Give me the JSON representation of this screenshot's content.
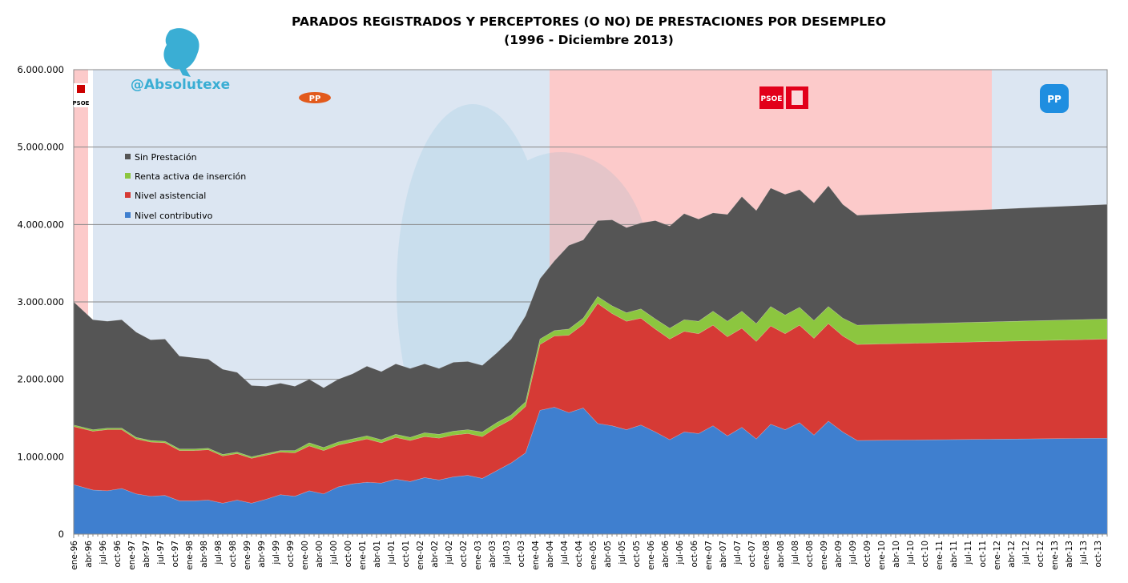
{
  "header": {
    "title_line1": "PARADOS REGISTRADOS Y PERCEPTORES (O NO) DE PRESTACIONES POR DESEMPLEO",
    "title_line2": "(1996 - Diciembre 2013)",
    "watermark_handle": "@Absolutexe"
  },
  "colors": {
    "sin_prestacion": "#555555",
    "renta_activa": "#8cc63f",
    "nivel_asistencial": "#d63a35",
    "nivel_contributivo": "#3f7fcf",
    "psoe_period_bg": "#fccaca",
    "pp_period_bg": "#dce6f2",
    "gridline": "#888888"
  },
  "logos": [
    {
      "party": "PSOE",
      "text": "PSOE"
    },
    {
      "party": "PP",
      "text": "PP"
    },
    {
      "party": "PSOE",
      "text": "PSOE"
    },
    {
      "party": "PP",
      "text": "PP"
    }
  ],
  "chart_data": {
    "type": "area",
    "stacked": true,
    "ylim": [
      0,
      6000000
    ],
    "yticks": [
      0,
      1000000,
      2000000,
      3000000,
      4000000,
      5000000,
      6000000
    ],
    "ytick_labels": [
      "0",
      "1.000.000",
      "2.000.000",
      "3.000.000",
      "4.000.000",
      "5.000.000",
      "6.000.000"
    ],
    "legend_position": "top-left",
    "legend": [
      "Sin Prestación",
      "Renta activa de inserción",
      "Nivel asistencial",
      "Nivel contributivo"
    ],
    "periods": [
      {
        "party": "PSOE",
        "from": "ene-96",
        "to": "abr-96"
      },
      {
        "party": "PP",
        "from": "may-96",
        "to": "abr-04"
      },
      {
        "party": "PSOE",
        "from": "abr-04",
        "to": "dic-11"
      },
      {
        "party": "PP",
        "from": "dic-11",
        "to": "dic-13"
      }
    ],
    "x_labels": [
      "ene-96",
      "abr-96",
      "jul-96",
      "oct-96",
      "ene-97",
      "abr-97",
      "jul-97",
      "oct-97",
      "ene-98",
      "abr-98",
      "jul-98",
      "oct-98",
      "ene-99",
      "abr-99",
      "jul-99",
      "oct-99",
      "ene-00",
      "abr-00",
      "jul-00",
      "oct-00",
      "ene-01",
      "abr-01",
      "jul-01",
      "oct-01",
      "ene-02",
      "abr-02",
      "jul-02",
      "oct-02",
      "ene-03",
      "abr-03",
      "jul-03",
      "oct-03",
      "ene-04",
      "abr-04",
      "jul-04",
      "oct-04",
      "ene-05",
      "abr-05",
      "jul-05",
      "oct-05",
      "ene-06",
      "abr-06",
      "jul-06",
      "oct-06",
      "ene-07",
      "abr-07",
      "jul-07",
      "oct-07",
      "ene-08",
      "abr-08",
      "jul-08",
      "oct-08",
      "ene-09",
      "abr-09",
      "jul-09",
      "oct-09",
      "ene-10",
      "abr-10",
      "jul-10",
      "oct-10",
      "ene-11",
      "abr-11",
      "jul-11",
      "oct-11",
      "ene-12",
      "abr-12",
      "jul-12",
      "oct-12",
      "ene-13",
      "abr-13",
      "jul-13",
      "oct-13"
    ],
    "series": [
      {
        "name": "Nivel contributivo",
        "values": [
          640000,
          570000,
          560000,
          590000,
          520000,
          490000,
          500000,
          430000,
          430000,
          440000,
          400000,
          440000,
          400000,
          450000,
          510000,
          490000,
          560000,
          520000,
          610000,
          650000,
          670000,
          660000,
          710000,
          680000,
          730000,
          700000,
          740000,
          760000,
          720000,
          820000,
          920000,
          1050000,
          1600000,
          1640000,
          1570000,
          1630000,
          1430000,
          1400000,
          1350000,
          1410000,
          1320000,
          1220000,
          1320000,
          1300000,
          1400000,
          1270000,
          1380000,
          1230000,
          1420000,
          1350000,
          1440000,
          1280000,
          1460000,
          1320000,
          1210000,
          1240000
        ]
      },
      {
        "name": "Nivel asistencial",
        "values": [
          750000,
          760000,
          790000,
          760000,
          710000,
          700000,
          680000,
          650000,
          650000,
          650000,
          610000,
          600000,
          580000,
          570000,
          550000,
          560000,
          580000,
          560000,
          540000,
          540000,
          560000,
          520000,
          540000,
          530000,
          530000,
          540000,
          540000,
          540000,
          540000,
          560000,
          560000,
          600000,
          850000,
          920000,
          1000000,
          1080000,
          1550000,
          1450000,
          1400000,
          1380000,
          1330000,
          1300000,
          1300000,
          1290000,
          1300000,
          1280000,
          1280000,
          1260000,
          1270000,
          1240000,
          1260000,
          1250000,
          1260000,
          1240000,
          1240000,
          1280000
        ]
      },
      {
        "name": "Renta activa de inserción",
        "values": [
          20000,
          20000,
          20000,
          20000,
          20000,
          20000,
          20000,
          20000,
          20000,
          20000,
          20000,
          20000,
          20000,
          20000,
          20000,
          30000,
          40000,
          40000,
          40000,
          40000,
          40000,
          40000,
          40000,
          40000,
          50000,
          50000,
          50000,
          50000,
          60000,
          60000,
          60000,
          60000,
          70000,
          70000,
          80000,
          80000,
          90000,
          100000,
          110000,
          120000,
          130000,
          140000,
          150000,
          160000,
          180000,
          200000,
          220000,
          230000,
          250000,
          240000,
          230000,
          230000,
          220000,
          230000,
          250000,
          260000
        ]
      },
      {
        "name": "Sin Prestación",
        "values": [
          1590000,
          1420000,
          1380000,
          1400000,
          1360000,
          1300000,
          1320000,
          1200000,
          1180000,
          1150000,
          1100000,
          1030000,
          920000,
          870000,
          870000,
          830000,
          820000,
          770000,
          810000,
          840000,
          900000,
          880000,
          910000,
          890000,
          890000,
          850000,
          890000,
          880000,
          860000,
          900000,
          980000,
          1110000,
          780000,
          900000,
          1080000,
          1010000,
          980000,
          1110000,
          1100000,
          1110000,
          1270000,
          1320000,
          1370000,
          1320000,
          1270000,
          1380000,
          1480000,
          1460000,
          1530000,
          1560000,
          1520000,
          1520000,
          1560000,
          1470000,
          1420000,
          1480000
        ]
      }
    ],
    "sample_months_index": [
      0,
      4,
      7,
      10,
      13,
      16,
      19,
      22,
      25,
      28,
      31,
      34,
      37,
      40,
      43,
      46,
      49,
      52,
      55,
      58,
      61,
      64,
      67,
      70,
      73,
      76,
      79,
      82,
      85,
      88,
      91,
      94,
      97,
      100,
      103,
      106,
      109,
      112,
      115,
      118,
      121,
      124,
      127,
      130,
      133,
      136,
      139,
      142,
      145,
      148,
      151,
      154,
      157,
      160,
      163,
      215
    ]
  }
}
